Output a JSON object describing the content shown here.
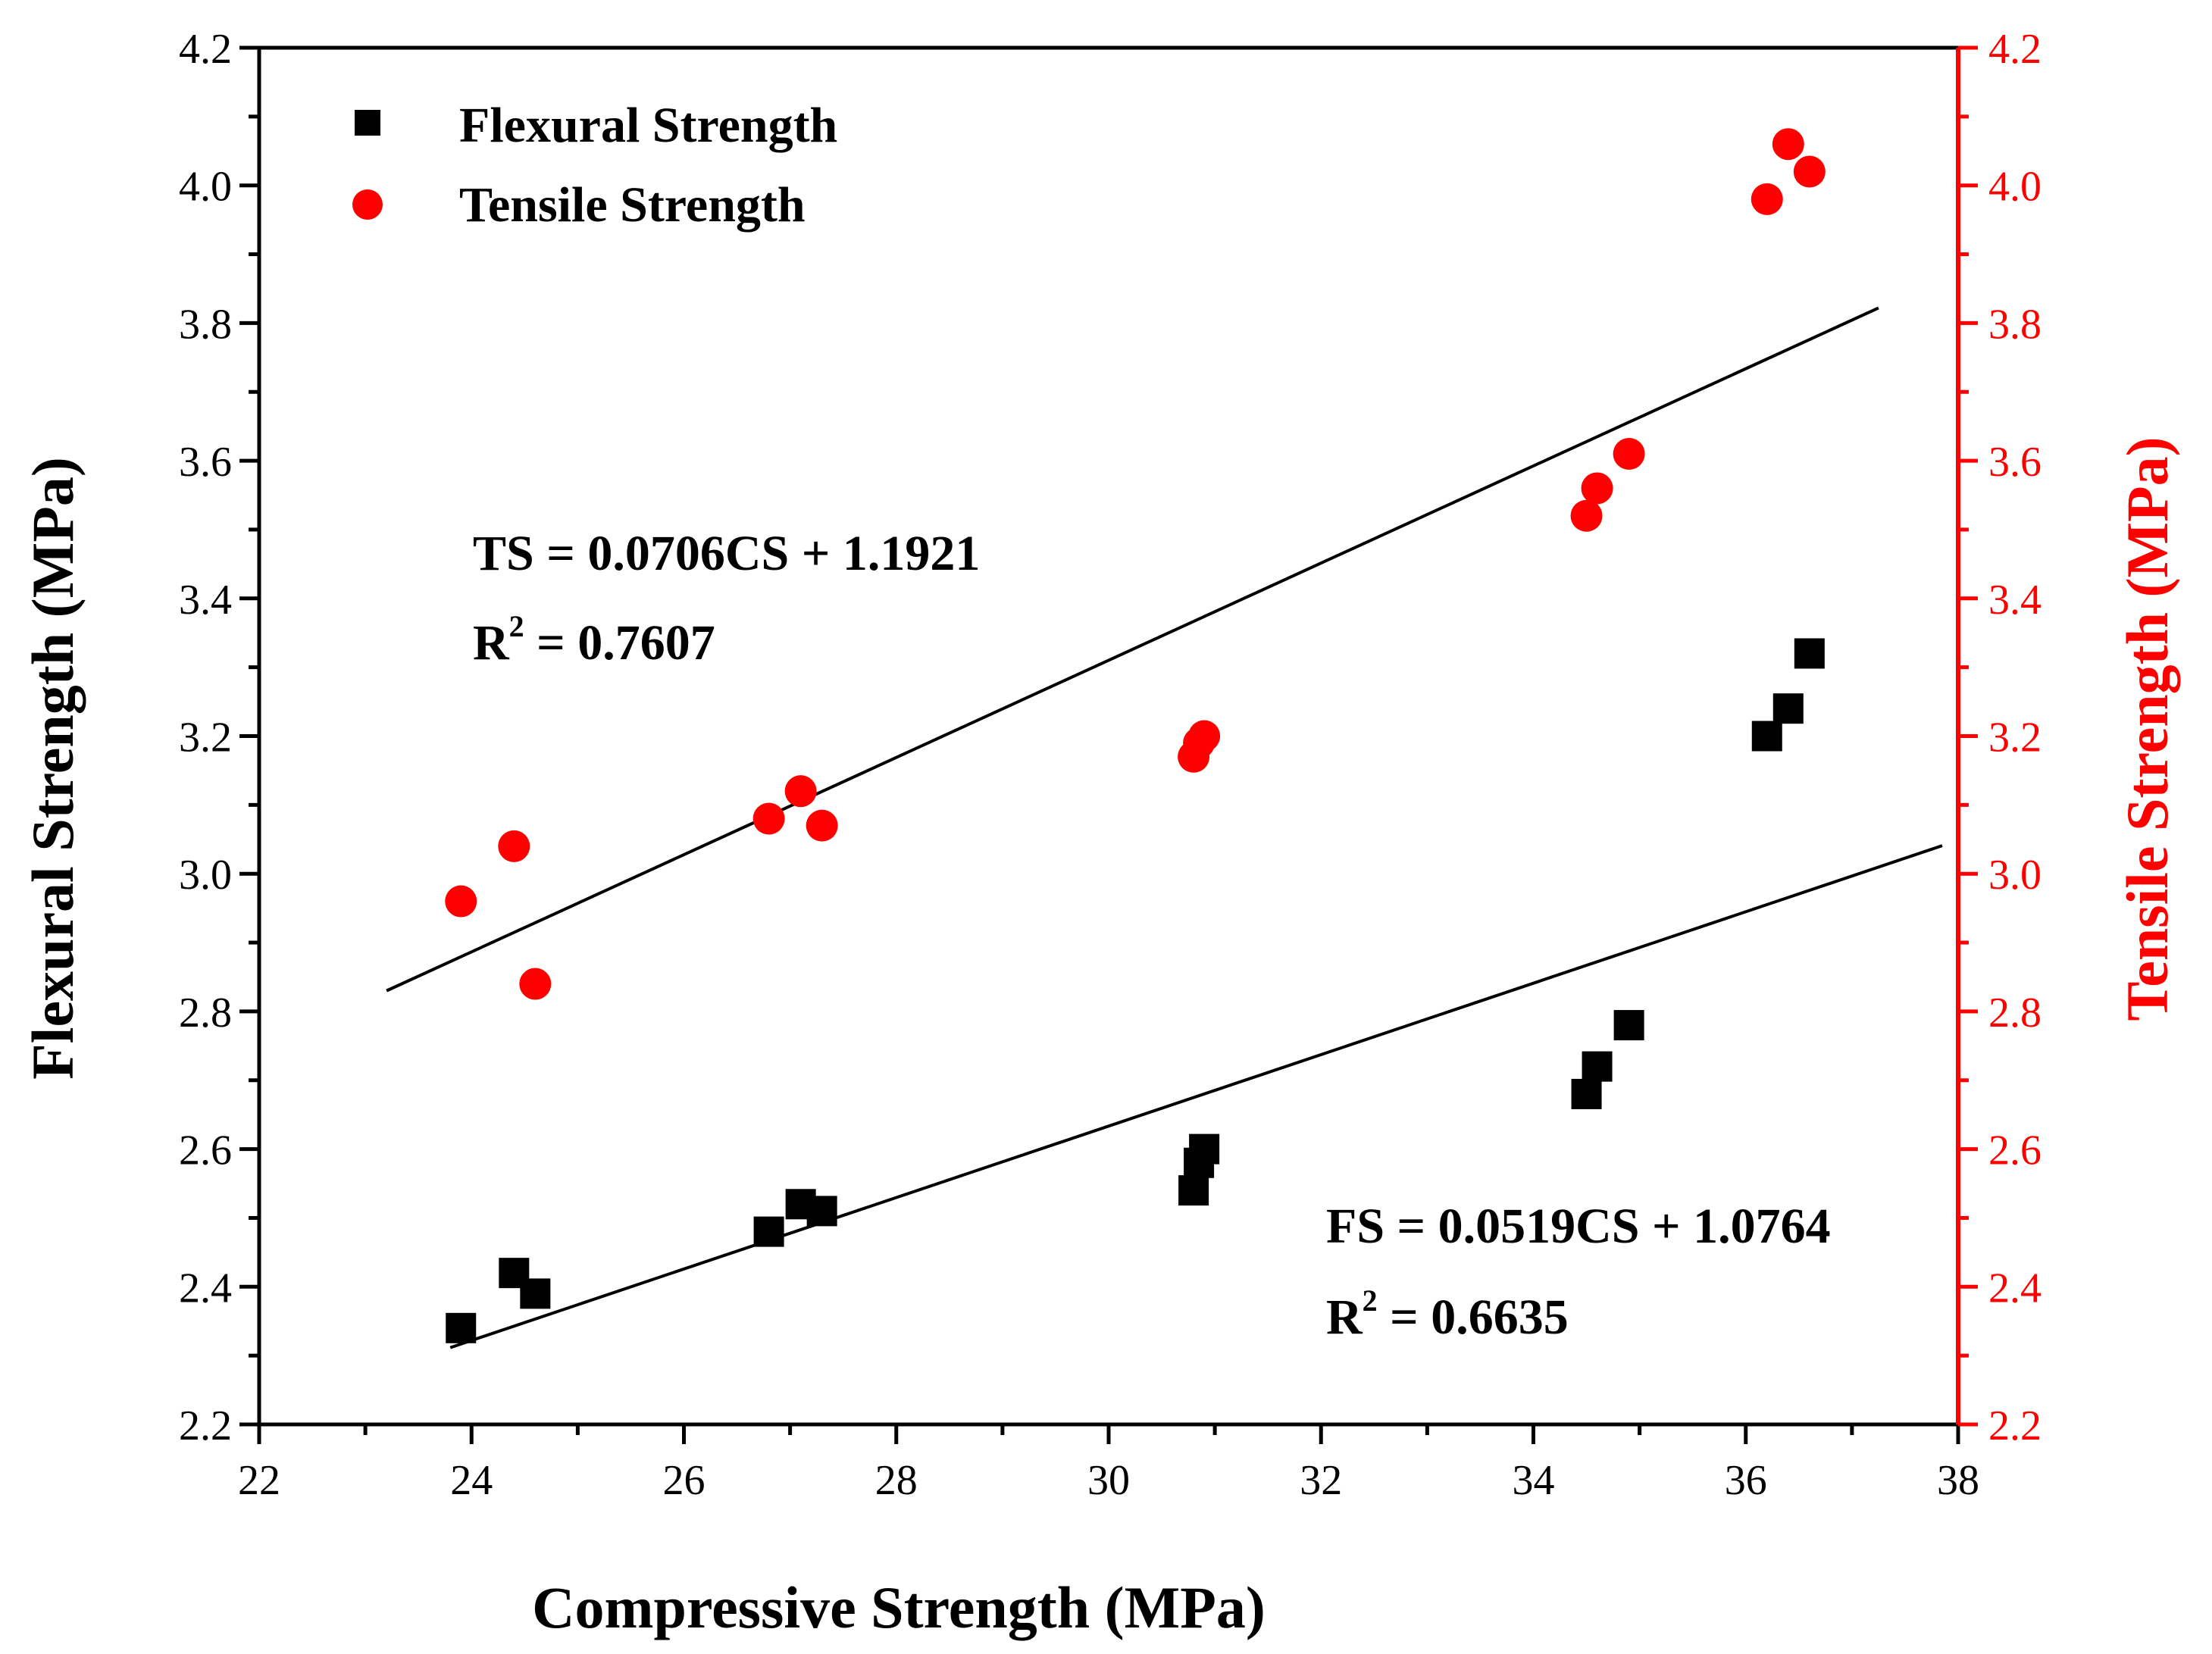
{
  "chart_data": {
    "type": "scatter",
    "title": "",
    "xlabel": "Compressive Strength (MPa)",
    "ylabel_left": "Flexural Strength (MPa)",
    "ylabel_right": "Tensile Strength (MPa)",
    "xlim": [
      22,
      38
    ],
    "ylim": [
      2.2,
      4.2
    ],
    "x_ticks": [
      "22",
      "24",
      "26",
      "28",
      "30",
      "32",
      "34",
      "36",
      "38"
    ],
    "y_ticks": [
      "2.2",
      "2.4",
      "2.6",
      "2.8",
      "3.0",
      "3.2",
      "3.4",
      "3.6",
      "3.8",
      "4.0",
      "4.2"
    ],
    "legend": {
      "placement": "top-left",
      "entries": [
        "Flexural Strength",
        "Tensile Strength"
      ]
    },
    "series": [
      {
        "name": "Flexural Strength",
        "marker": "square",
        "color": "#000000",
        "axis": "left",
        "points": [
          [
            23.9,
            2.34
          ],
          [
            24.4,
            2.42
          ],
          [
            24.6,
            2.39
          ],
          [
            26.8,
            2.48
          ],
          [
            27.1,
            2.52
          ],
          [
            27.3,
            2.51
          ],
          [
            30.8,
            2.54
          ],
          [
            30.85,
            2.58
          ],
          [
            30.9,
            2.6
          ],
          [
            34.5,
            2.68
          ],
          [
            34.6,
            2.72
          ],
          [
            34.9,
            2.78
          ],
          [
            36.2,
            3.2
          ],
          [
            36.4,
            3.24
          ],
          [
            36.6,
            3.32
          ]
        ]
      },
      {
        "name": "Tensile Strength",
        "marker": "circle",
        "color": "#ff0000",
        "axis": "right",
        "points": [
          [
            23.9,
            2.96
          ],
          [
            24.4,
            3.04
          ],
          [
            24.6,
            2.84
          ],
          [
            26.8,
            3.08
          ],
          [
            27.1,
            3.12
          ],
          [
            27.3,
            3.07
          ],
          [
            30.8,
            3.17
          ],
          [
            30.85,
            3.19
          ],
          [
            30.9,
            3.2
          ],
          [
            34.5,
            3.52
          ],
          [
            34.6,
            3.56
          ],
          [
            34.9,
            3.61
          ],
          [
            36.2,
            3.98
          ],
          [
            36.4,
            4.06
          ],
          [
            36.6,
            4.02
          ]
        ]
      }
    ],
    "fits": [
      {
        "name": "Tensile Strength fit",
        "slope": 0.0706,
        "intercept": 1.1921,
        "x_range": [
          23.2,
          37.25
        ],
        "equation": "TS = 0.0706CS + 1.1921",
        "r2_label": "R",
        "r2_sup": "2",
        "r2_value": " = 0.7607"
      },
      {
        "name": "Flexural Strength fit",
        "slope": 0.0519,
        "intercept": 1.0764,
        "x_range": [
          23.8,
          37.85
        ],
        "equation": "FS = 0.0519CS + 1.0764",
        "r2_label": "R",
        "r2_sup": "2",
        "r2_value": " = 0.6635"
      }
    ],
    "colors": {
      "left_axis": "#000000",
      "right_axis": "#ff0000"
    }
  }
}
